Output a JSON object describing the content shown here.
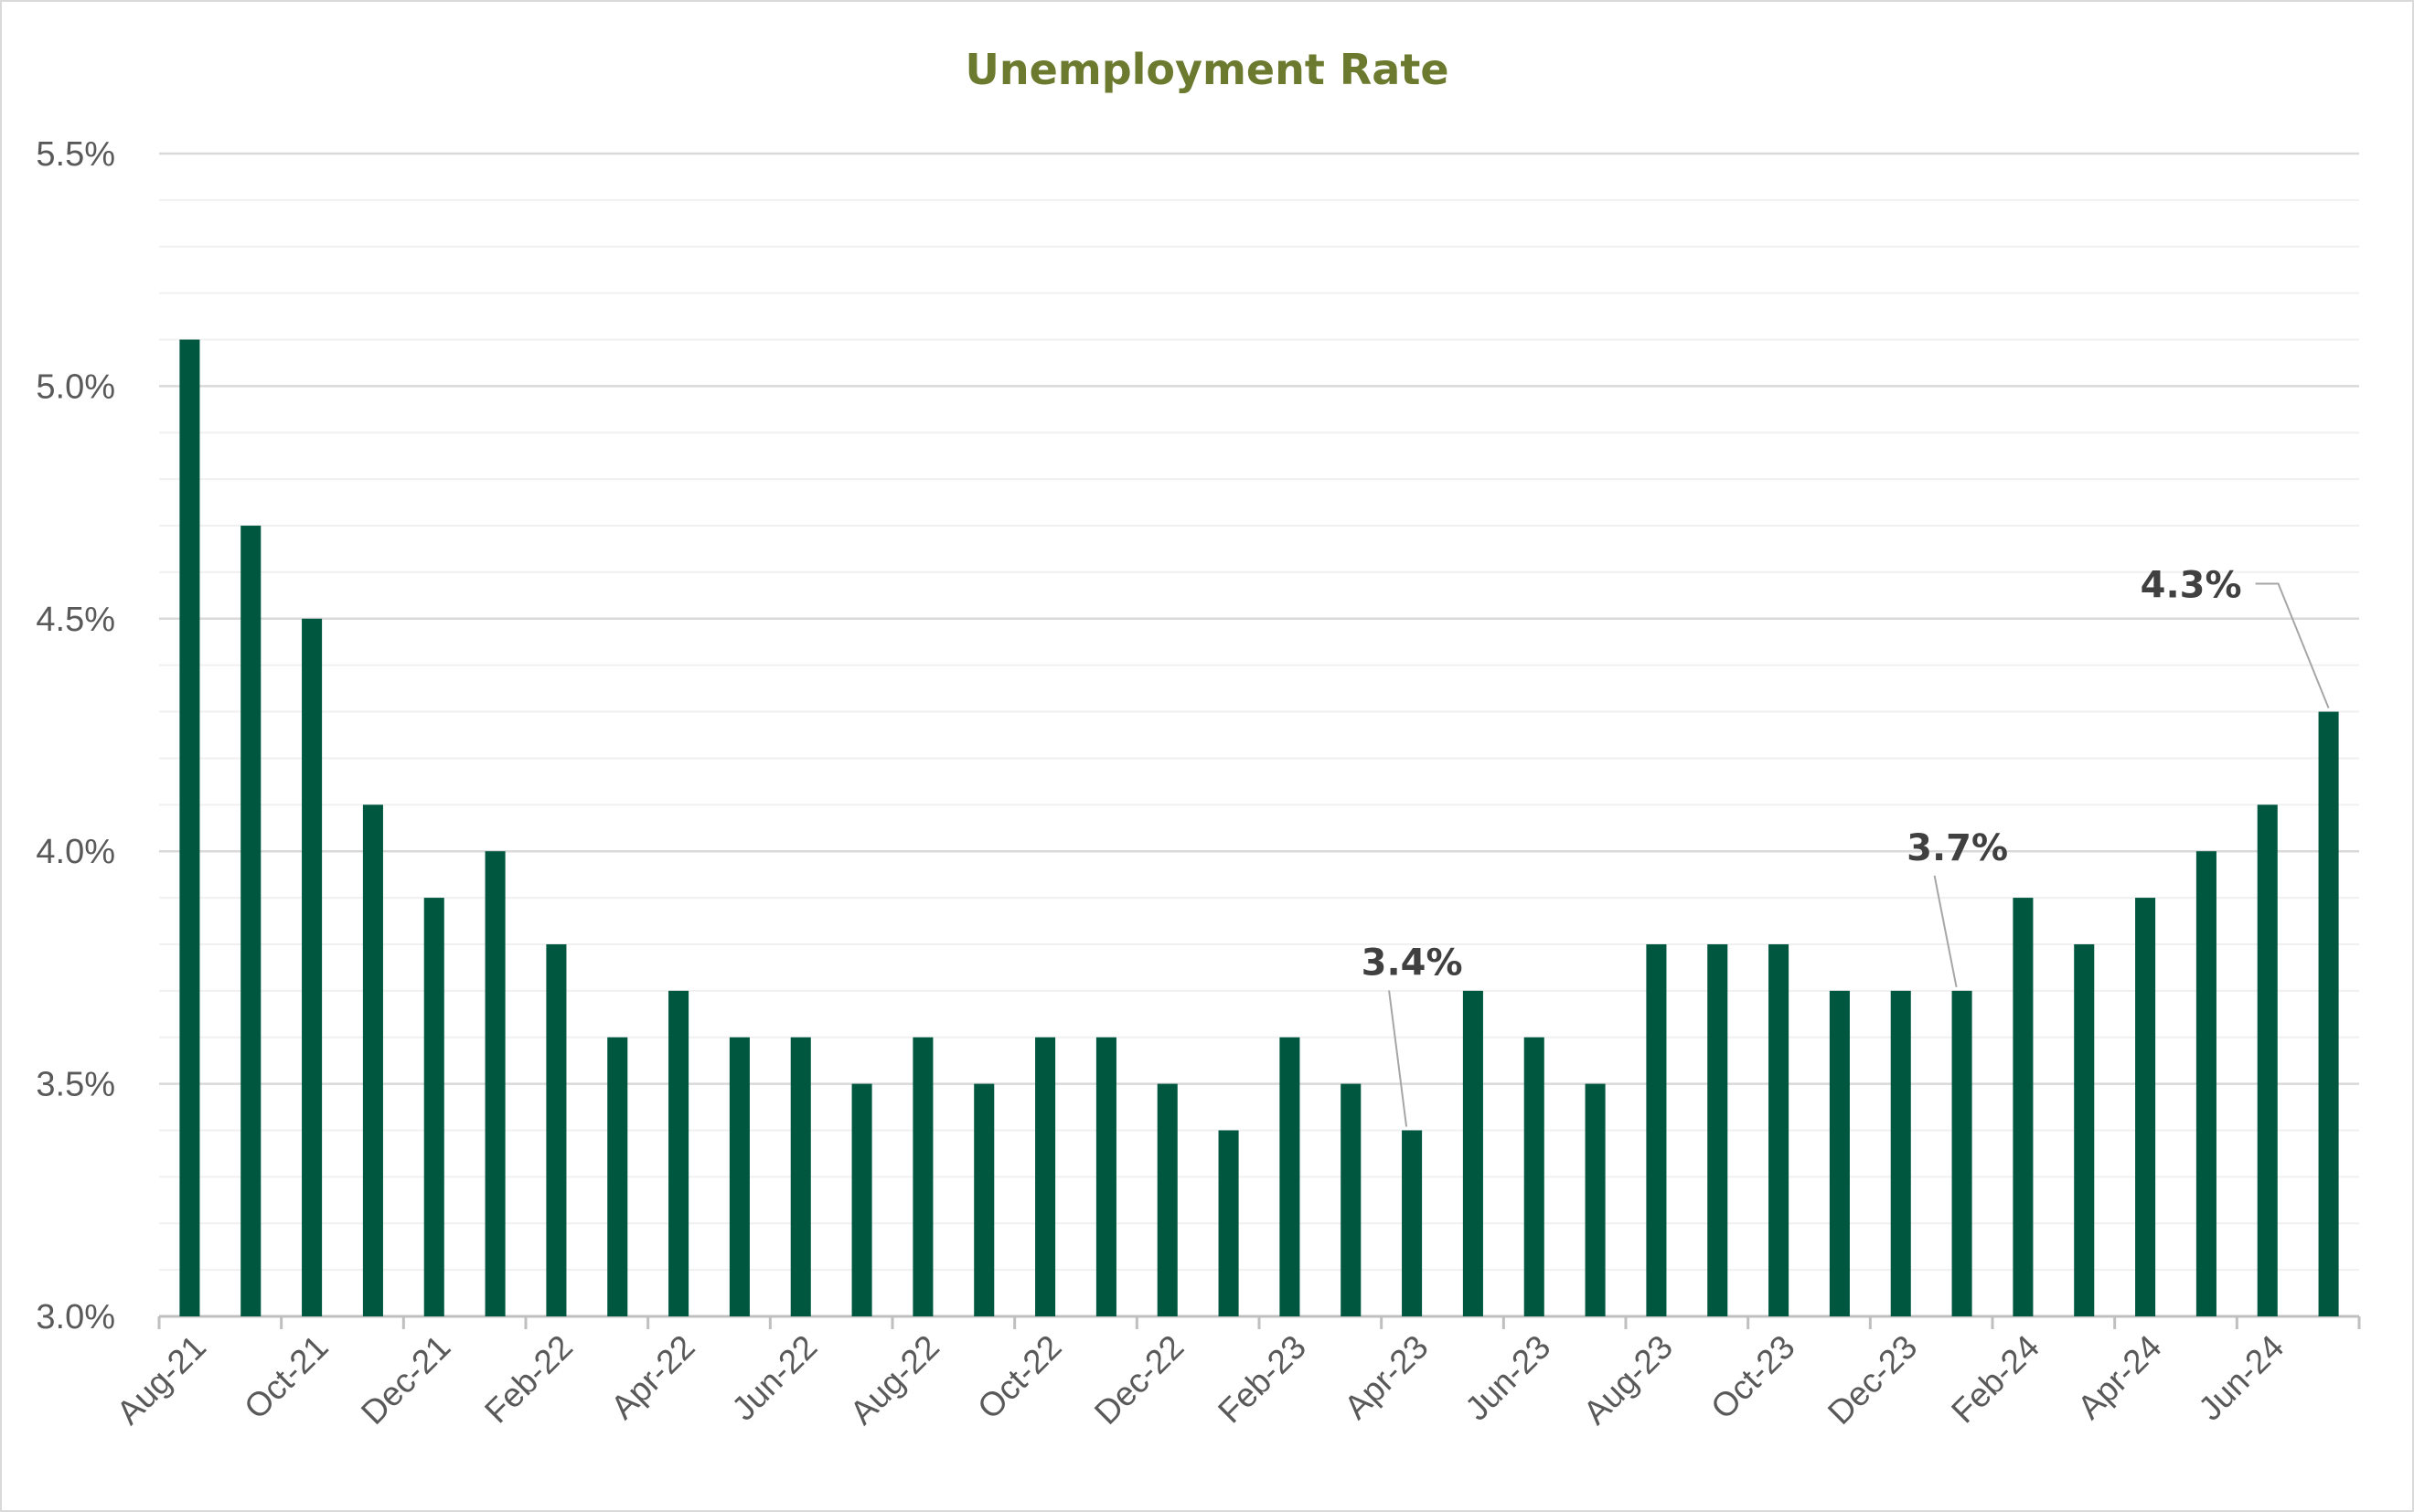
{
  "chart_data": {
    "type": "bar",
    "title": "Unemployment Rate",
    "xlabel": "",
    "ylabel": "",
    "ylim": [
      3.0,
      5.5
    ],
    "y_major_step": 0.5,
    "y_minor_step": 0.1,
    "y_tick_labels": [
      "3.0%",
      "3.5%",
      "4.0%",
      "4.5%",
      "5.0%",
      "5.5%"
    ],
    "grid": true,
    "legend": "none",
    "categories": [
      "Aug-21",
      "Sep-21",
      "Oct-21",
      "Nov-21",
      "Dec-21",
      "Jan-22",
      "Feb-22",
      "Mar-22",
      "Apr-22",
      "May-22",
      "Jun-22",
      "Jul-22",
      "Aug-22",
      "Sep-22",
      "Oct-22",
      "Nov-22",
      "Dec-22",
      "Jan-23",
      "Feb-23",
      "Mar-23",
      "Apr-23",
      "May-23",
      "Jun-23",
      "Jul-23",
      "Aug-23",
      "Sep-23",
      "Oct-23",
      "Nov-23",
      "Dec-23",
      "Jan-24",
      "Feb-24",
      "Mar-24",
      "Apr-24",
      "May-24",
      "Jun-24",
      "Jul-24"
    ],
    "x_tick_labels": [
      "Aug-21",
      "Oct-21",
      "Dec-21",
      "Feb-22",
      "Apr-22",
      "Jun-22",
      "Aug-22",
      "Oct-22",
      "Dec-22",
      "Feb-23",
      "Apr-23",
      "Jun-23",
      "Aug-23",
      "Oct-23",
      "Dec-23",
      "Feb-24",
      "Apr-24",
      "Jun-24"
    ],
    "values": [
      5.1,
      4.7,
      4.5,
      4.1,
      3.9,
      4.0,
      3.8,
      3.6,
      3.7,
      3.6,
      3.6,
      3.5,
      3.6,
      3.5,
      3.6,
      3.6,
      3.5,
      3.4,
      3.6,
      3.5,
      3.4,
      3.7,
      3.6,
      3.5,
      3.8,
      3.8,
      3.8,
      3.7,
      3.7,
      3.7,
      3.9,
      3.8,
      3.9,
      4.0,
      4.1,
      4.3
    ],
    "annotations": [
      {
        "category": "Apr-23",
        "text": "3.4%"
      },
      {
        "category": "Jan-24",
        "text": "3.7%"
      },
      {
        "category": "Jul-24",
        "text": "4.3%"
      }
    ],
    "colors": {
      "bar": "#00573f",
      "title": "#6b7a2e",
      "major_grid": "#d9d9d9",
      "minor_grid": "#f0f0f0",
      "axis": "#bfbfbf",
      "leader": "#a6a6a6"
    }
  }
}
